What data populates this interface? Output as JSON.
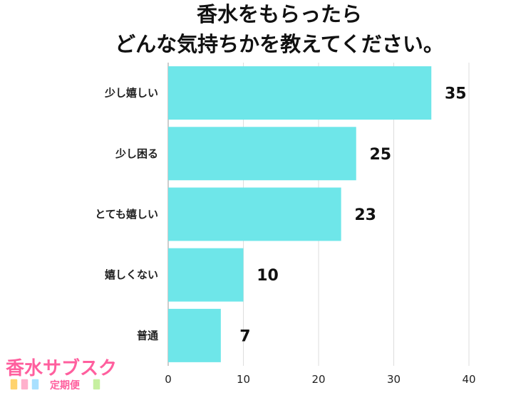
{
  "chart_data": {
    "type": "bar",
    "orientation": "horizontal",
    "title_lines": [
      "香水をもらったら",
      "どんな気持ちかを教えてください。"
    ],
    "categories": [
      "少し嬉しい",
      "少し困る",
      "とても嬉しい",
      "嬉しくない",
      "普通"
    ],
    "values": [
      35,
      25,
      23,
      10,
      7
    ],
    "xlim": [
      0,
      40
    ],
    "xticks": [
      0,
      10,
      20,
      30,
      40
    ],
    "grid": true,
    "bar_color": "#6ee6e9",
    "grid_color": "#dddddd"
  },
  "logo": {
    "line1": "香水サブスク",
    "line2": "定期便"
  }
}
